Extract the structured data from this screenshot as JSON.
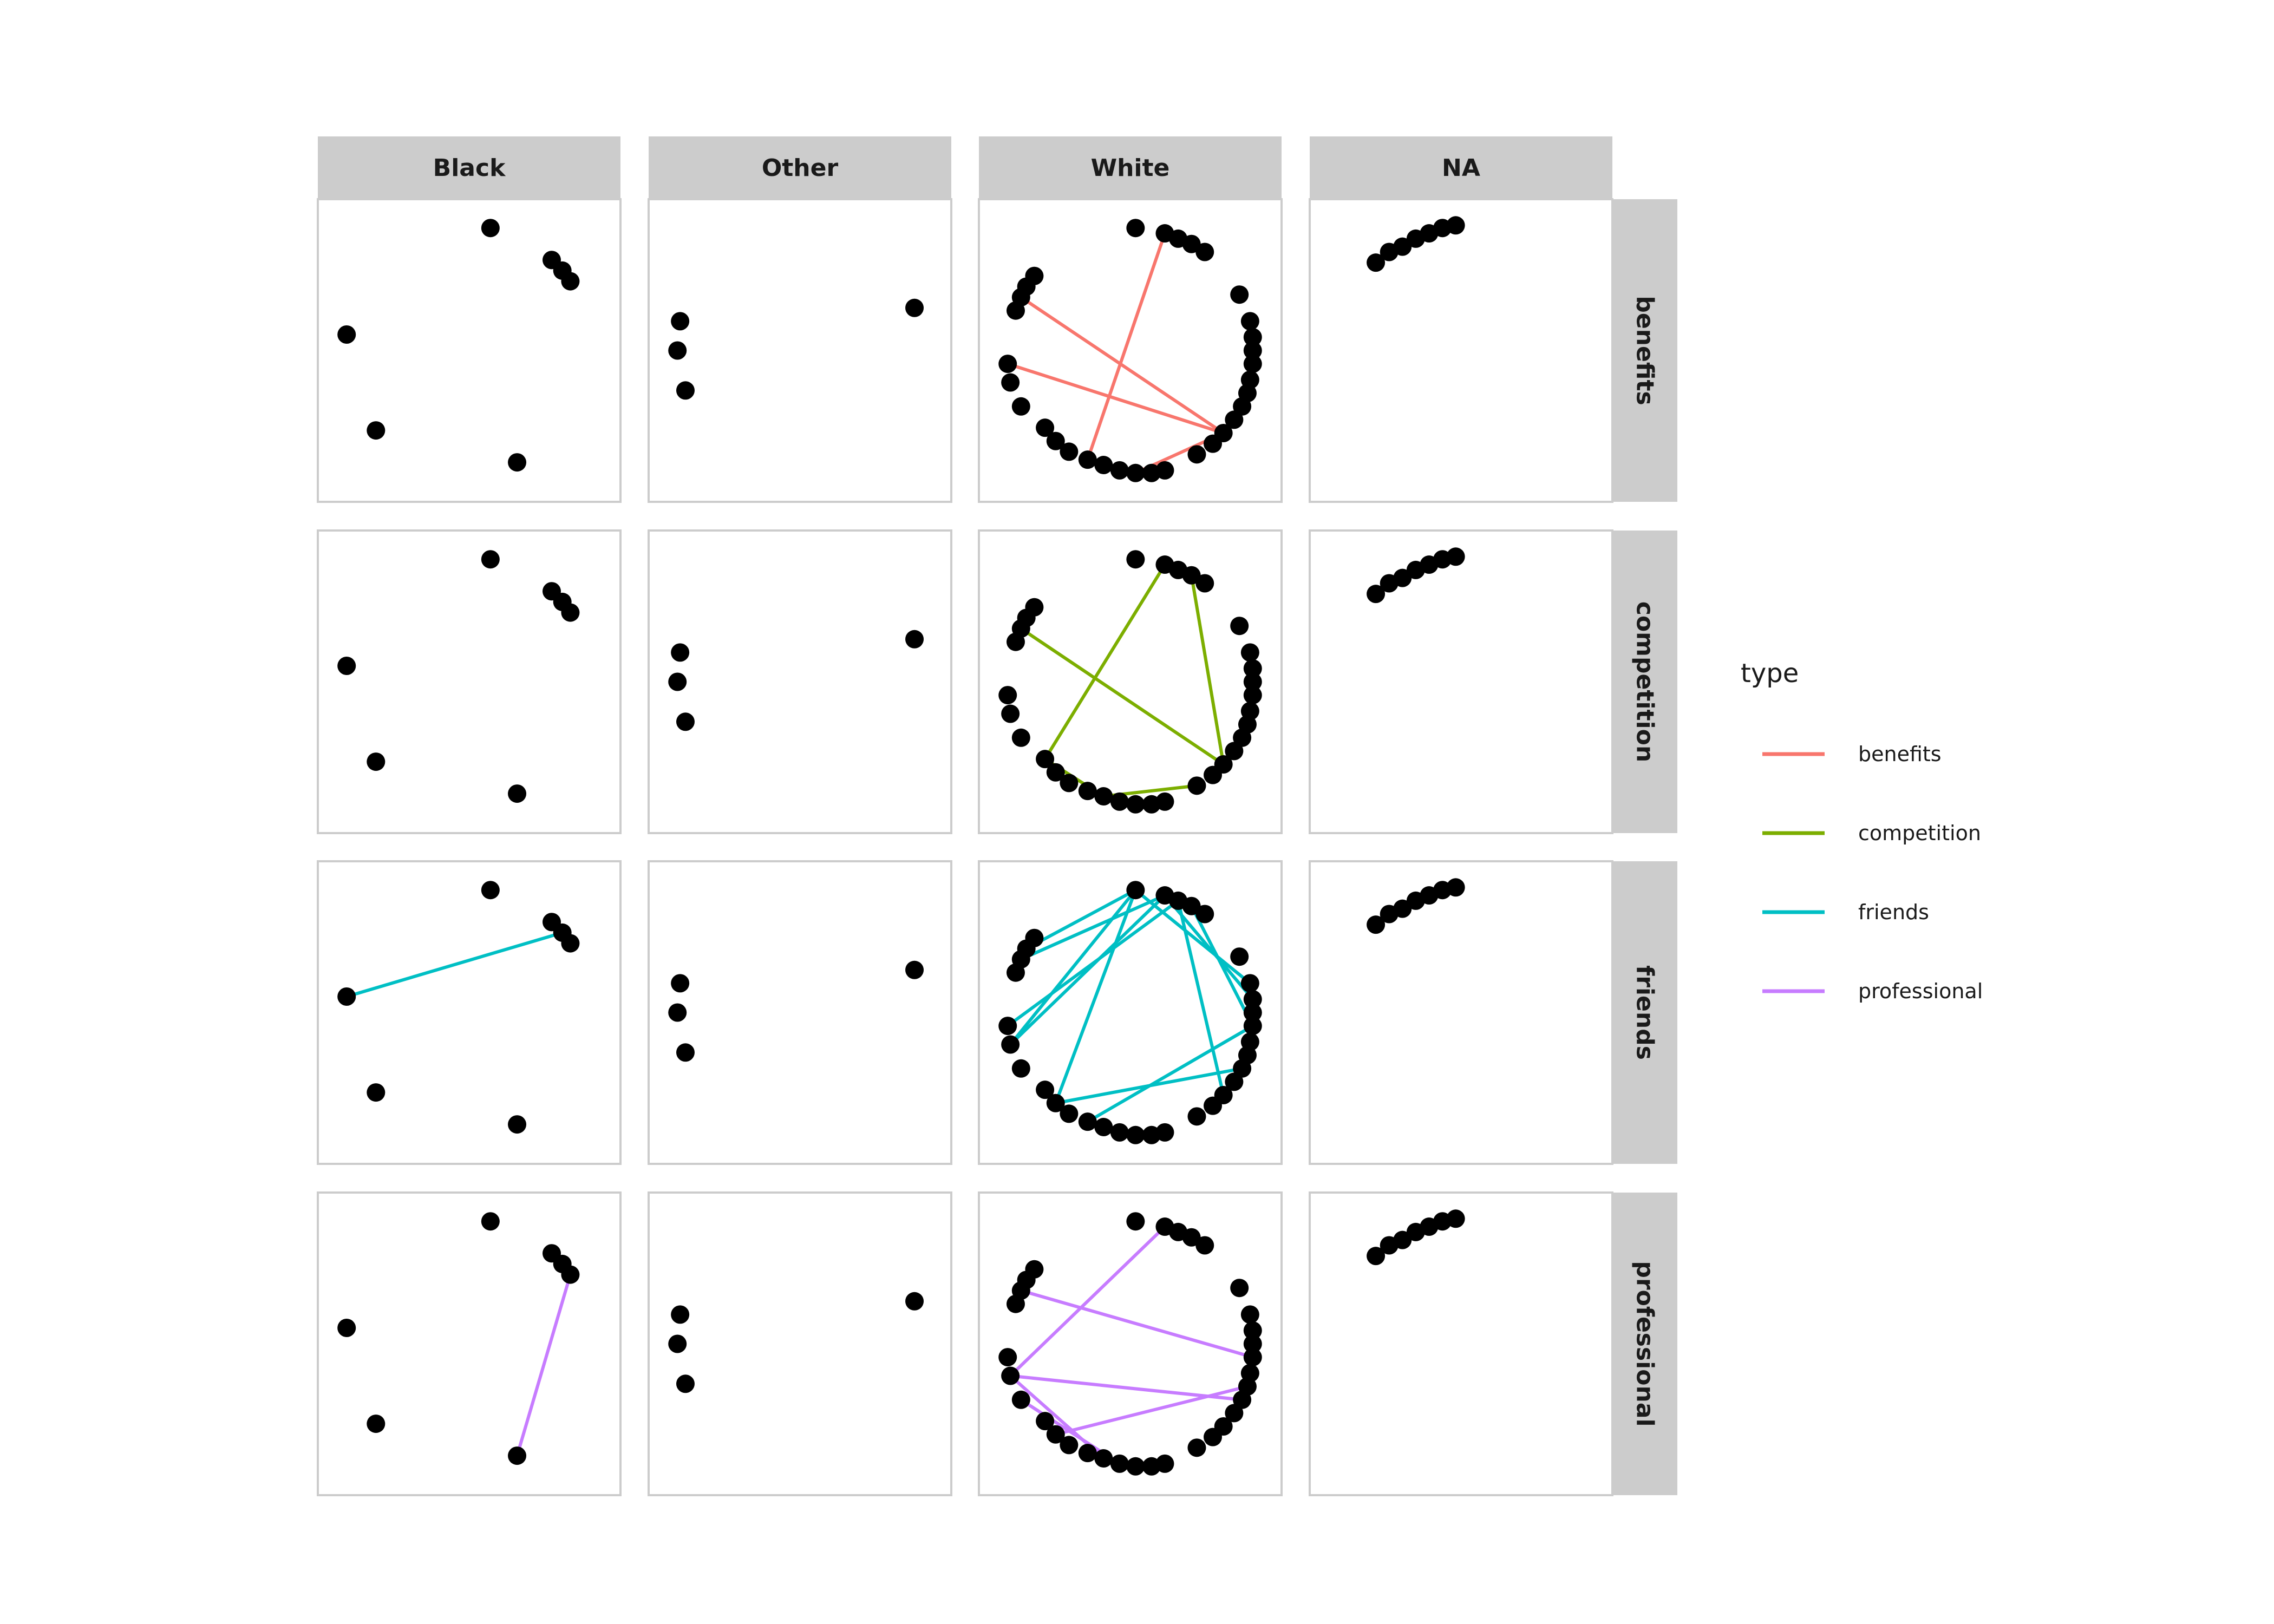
{
  "chart_data": {
    "type": "scatter",
    "kind": "faceted network graph",
    "columns": [
      "Black",
      "Other",
      "White",
      "NA"
    ],
    "rows": [
      "benefits",
      "competition",
      "friends",
      "professional"
    ],
    "legend": {
      "title": "type",
      "position": "right",
      "entries": [
        {
          "label": "benefits",
          "color": "#F8766D"
        },
        {
          "label": "competition",
          "color": "#7CAE00"
        },
        {
          "label": "friends",
          "color": "#00BFC4"
        },
        {
          "label": "professional",
          "color": "#C77CFF"
        }
      ]
    },
    "grid": false,
    "axes_shown": false,
    "x_range": [
      0,
      1
    ],
    "y_range": [
      0,
      1
    ],
    "nodes": {
      "Black": [
        [
          0.58,
          0.96
        ],
        [
          0.81,
          0.84
        ],
        [
          0.85,
          0.8
        ],
        [
          0.88,
          0.76
        ],
        [
          0.04,
          0.56
        ],
        [
          0.15,
          0.2
        ],
        [
          0.68,
          0.08
        ]
      ],
      "Other": [
        [
          0.93,
          0.66
        ],
        [
          0.05,
          0.61
        ],
        [
          0.04,
          0.5
        ],
        [
          0.07,
          0.35
        ]
      ],
      "White": [
        [
          0.52,
          0.96
        ],
        [
          0.63,
          0.94
        ],
        [
          0.68,
          0.92
        ],
        [
          0.73,
          0.9
        ],
        [
          0.78,
          0.87
        ],
        [
          0.91,
          0.71
        ],
        [
          0.95,
          0.61
        ],
        [
          0.96,
          0.55
        ],
        [
          0.96,
          0.5
        ],
        [
          0.96,
          0.45
        ],
        [
          0.95,
          0.39
        ],
        [
          0.94,
          0.34
        ],
        [
          0.92,
          0.29
        ],
        [
          0.89,
          0.24
        ],
        [
          0.85,
          0.19
        ],
        [
          0.81,
          0.15
        ],
        [
          0.75,
          0.11
        ],
        [
          0.63,
          0.05
        ],
        [
          0.58,
          0.04
        ],
        [
          0.52,
          0.04
        ],
        [
          0.46,
          0.05
        ],
        [
          0.4,
          0.07
        ],
        [
          0.34,
          0.09
        ],
        [
          0.27,
          0.12
        ],
        [
          0.22,
          0.16
        ],
        [
          0.18,
          0.21
        ],
        [
          0.09,
          0.29
        ],
        [
          0.05,
          0.38
        ],
        [
          0.04,
          0.45
        ],
        [
          0.07,
          0.65
        ],
        [
          0.09,
          0.7
        ],
        [
          0.11,
          0.74
        ],
        [
          0.14,
          0.78
        ]
      ],
      "NA": [
        [
          0.18,
          0.83
        ],
        [
          0.23,
          0.87
        ],
        [
          0.28,
          0.89
        ],
        [
          0.33,
          0.92
        ],
        [
          0.38,
          0.94
        ],
        [
          0.43,
          0.96
        ],
        [
          0.48,
          0.97
        ]
      ]
    },
    "edges": {
      "benefits": {
        "White": [
          [
            14,
            30
          ],
          [
            14,
            28
          ],
          [
            1,
            22
          ],
          [
            14,
            19
          ]
        ]
      },
      "competition": {
        "White": [
          [
            3,
            14
          ],
          [
            1,
            25
          ],
          [
            14,
            30
          ],
          [
            16,
            21
          ],
          [
            25,
            21
          ]
        ]
      },
      "friends": {
        "Black": [
          [
            4,
            2
          ]
        ],
        "White": [
          [
            0,
            31
          ],
          [
            1,
            30
          ],
          [
            2,
            28
          ],
          [
            0,
            27
          ],
          [
            1,
            27
          ],
          [
            0,
            24
          ],
          [
            2,
            14
          ],
          [
            0,
            6
          ],
          [
            12,
            24
          ],
          [
            7,
            1
          ],
          [
            9,
            3
          ],
          [
            22,
            9
          ]
        ]
      },
      "professional": {
        "Black": [
          [
            3,
            6
          ]
        ],
        "White": [
          [
            1,
            27
          ],
          [
            30,
            9
          ],
          [
            27,
            21
          ],
          [
            27,
            12
          ],
          [
            24,
            11
          ],
          [
            20,
            26
          ]
        ]
      }
    }
  }
}
